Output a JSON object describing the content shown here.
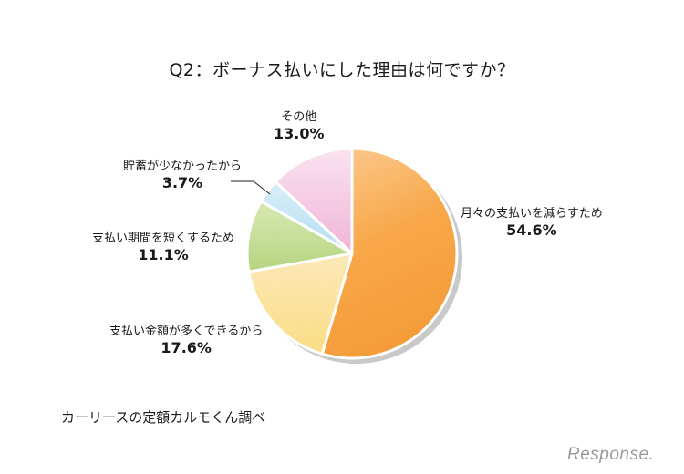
{
  "title": "Q2：ボーナス払いにした理由は何ですか？",
  "source": "カーリースの定額カルモくん調べ",
  "logo": "Response.",
  "chart_data": {
    "type": "pie",
    "title": "Q2：ボーナス払いにした理由は何ですか？",
    "start_angle": "12 o'clock, clockwise",
    "categories": [
      "月々の支払いを減らすため",
      "支払い金額が多くできるから",
      "支払い期間を短くするため",
      "貯蓄が少なかったから",
      "その他"
    ],
    "values": [
      54.6,
      17.6,
      11.1,
      3.7,
      13.0
    ],
    "value_labels": [
      "54.6%",
      "17.6%",
      "11.1%",
      "3.7%",
      "13.0%"
    ],
    "colors": [
      "#F8A84A",
      "#FBDE8C",
      "#BFDB8E",
      "#BFE2F3",
      "#F2BEDA"
    ],
    "note": "カーリースの定額カルモくん調べ"
  },
  "labels": [
    {
      "name": "月々の支払いを減らすため",
      "pct": "54.6%"
    },
    {
      "name": "支払い金額が多くできるから",
      "pct": "17.6%"
    },
    {
      "name": "支払い期間を短くするため",
      "pct": "11.1%"
    },
    {
      "name": "貯蓄が少なかったから",
      "pct": "3.7%"
    },
    {
      "name": "その他",
      "pct": "13.0%"
    }
  ]
}
